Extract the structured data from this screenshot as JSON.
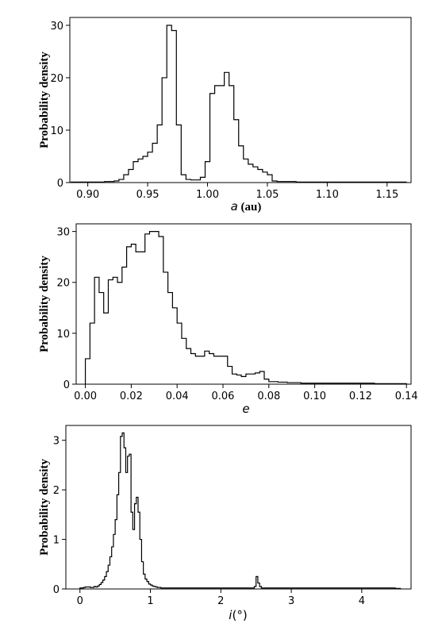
{
  "chart_data": [
    {
      "type": "histogram",
      "ylabel": "Probability density",
      "xlabel_var": "a",
      "xlabel_rest": " (au)",
      "xlim": [
        0.885,
        1.17
      ],
      "ylim": [
        0,
        31.5
      ],
      "xticks": [
        0.9,
        0.95,
        1.0,
        1.05,
        1.1,
        1.15
      ],
      "xticklabels": [
        "0.90",
        "0.95",
        "1.00",
        "1.05",
        "1.10",
        "1.15"
      ],
      "yticks": [
        0,
        10,
        20,
        30
      ],
      "yticklabels": [
        "0",
        "10",
        "20",
        "30"
      ],
      "bin_start": 0.886,
      "bin_width": 0.004,
      "values": [
        0.1,
        0.1,
        0.1,
        0.1,
        0.1,
        0.1,
        0.1,
        0.2,
        0.2,
        0.3,
        0.6,
        1.5,
        2.5,
        4,
        4.5,
        5,
        5.8,
        7.5,
        11,
        20,
        30,
        29,
        11,
        1.5,
        0.6,
        0.5,
        0.5,
        1,
        4,
        17,
        18.5,
        18.5,
        21,
        18.5,
        12,
        7,
        4.5,
        3.5,
        3,
        2.5,
        2,
        1.5,
        0.3,
        0.2,
        0.2,
        0.2,
        0.2,
        0.1,
        0.1,
        0.1,
        0.1,
        0.1,
        0.1,
        0.1,
        0.1,
        0.1,
        0.1,
        0.1,
        0.1,
        0.1,
        0.1,
        0.1,
        0.1,
        0.1,
        0.1,
        0.1,
        0.1,
        0.1,
        0.1,
        0.1
      ]
    },
    {
      "type": "histogram",
      "ylabel": "Probability density",
      "xlabel_var": "e",
      "xlabel_rest": "",
      "xlim": [
        -0.004,
        0.142
      ],
      "ylim": [
        0,
        31.5
      ],
      "xticks": [
        0.0,
        0.02,
        0.04,
        0.06,
        0.08,
        0.1,
        0.12,
        0.14
      ],
      "xticklabels": [
        "0.00",
        "0.02",
        "0.04",
        "0.06",
        "0.08",
        "0.10",
        "0.12",
        "0.14"
      ],
      "yticks": [
        0,
        10,
        20,
        30
      ],
      "yticklabels": [
        "0",
        "10",
        "20",
        "30"
      ],
      "bin_start": 0.0,
      "bin_width": 0.002,
      "values": [
        5,
        12,
        21,
        18,
        14,
        20.5,
        21,
        20,
        23,
        27,
        27.5,
        26,
        26,
        29.5,
        30,
        30,
        29,
        22,
        18,
        15,
        12,
        9,
        7,
        6,
        5.5,
        5.5,
        6.5,
        6,
        5.5,
        5.5,
        5.5,
        3.5,
        2,
        1.8,
        1.5,
        2,
        2,
        2.2,
        2.5,
        1,
        0.5,
        0.5,
        0.4,
        0.4,
        0.3,
        0.3,
        0.3,
        0.2,
        0.2,
        0.2,
        0.2,
        0.2,
        0.2,
        0.2,
        0.2,
        0.2,
        0.2,
        0.2,
        0.2,
        0.2,
        0.2,
        0.2,
        0.2,
        0.1,
        0.1,
        0.1,
        0.1,
        0.1,
        0.1,
        0.1
      ]
    },
    {
      "type": "histogram",
      "ylabel": "Probability density",
      "xlabel_var": "i",
      "xlabel_rest": "(°)",
      "xlim": [
        -0.2,
        4.7
      ],
      "ylim": [
        0,
        3.3
      ],
      "xticks": [
        0,
        1,
        2,
        3,
        4
      ],
      "xticklabels": [
        "0",
        "1",
        "2",
        "3",
        "4"
      ],
      "yticks": [
        0,
        1,
        2,
        3
      ],
      "yticklabels": [
        "0",
        "1",
        "2",
        "3"
      ],
      "bin_start": 0.0,
      "bin_width": 0.025,
      "values": [
        0.02,
        0.02,
        0.03,
        0.04,
        0.04,
        0.04,
        0.03,
        0.03,
        0.05,
        0.04,
        0.06,
        0.09,
        0.13,
        0.18,
        0.25,
        0.35,
        0.48,
        0.65,
        0.85,
        1.1,
        1.4,
        1.9,
        2.35,
        3.08,
        3.15,
        2.85,
        2.35,
        2.68,
        2.72,
        1.55,
        1.2,
        1.72,
        1.85,
        1.55,
        1.0,
        0.55,
        0.3,
        0.2,
        0.15,
        0.1,
        0.08,
        0.06,
        0.05,
        0.04,
        0.03,
        0.03,
        0.02,
        0.02,
        0.02,
        0.02,
        0.02,
        0.02,
        0.02,
        0.02,
        0.02,
        0.02,
        0.02,
        0.02,
        0.02,
        0.02,
        0.02,
        0.02,
        0.02,
        0.02,
        0.02,
        0.02,
        0.02,
        0.02,
        0.02,
        0.02,
        0.02,
        0.02,
        0.02,
        0.02,
        0.02,
        0.02,
        0.02,
        0.02,
        0.02,
        0.02,
        0.02,
        0.02,
        0.02,
        0.02,
        0.02,
        0.02,
        0.02,
        0.02,
        0.02,
        0.02,
        0.02,
        0.02,
        0.02,
        0.02,
        0.02,
        0.02,
        0.02,
        0.02,
        0.02,
        0.05,
        0.25,
        0.12,
        0.05,
        0.02,
        0.02,
        0.02,
        0.02,
        0.02,
        0.02,
        0.02,
        0.02,
        0.02,
        0.02,
        0.02,
        0.02,
        0.02,
        0.02,
        0.02,
        0.02,
        0.02,
        0.02,
        0.02,
        0.02,
        0.02,
        0.02,
        0.02,
        0.02,
        0.02,
        0.02,
        0.02,
        0.02,
        0.02,
        0.02,
        0.02,
        0.02,
        0.02,
        0.02,
        0.02,
        0.02,
        0.02,
        0.02,
        0.02,
        0.02,
        0.02,
        0.02,
        0.02,
        0.02,
        0.02,
        0.02,
        0.02,
        0.02,
        0.02,
        0.02,
        0.02,
        0.02,
        0.02,
        0.02,
        0.02,
        0.02,
        0.02,
        0.02,
        0.02,
        0.02,
        0.02,
        0.02,
        0.02,
        0.02,
        0.02,
        0.02,
        0.02,
        0.02,
        0.02,
        0.02,
        0.02,
        0.02,
        0.02,
        0.02,
        0.02,
        0.02,
        0.01,
        0.01,
        0.01
      ]
    }
  ]
}
